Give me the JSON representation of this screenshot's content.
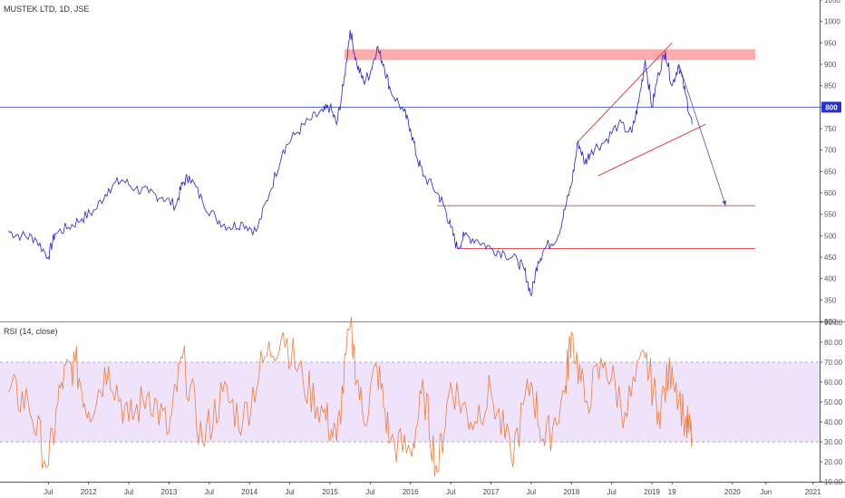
{
  "title": "MUSTEK LTD, 1D, JSE",
  "rsi_title": "RSI (14, close)",
  "colors": {
    "price_line": "#2323d6",
    "rsi_line": "#f07d3c",
    "rsi_band": "#eee3fb",
    "trend_lines": "#e23b3b",
    "resistance_zone": "#ffaaaa",
    "horizontal_line": "#3b4fd6",
    "price_badge": "#2a2fd6"
  },
  "chart_data": [
    {
      "type": "line",
      "title": "MUSTEK LTD, 1D, JSE",
      "ylim": [
        300,
        1050
      ],
      "y_ticks": [
        "300",
        "350",
        "400",
        "450",
        "500",
        "550",
        "600",
        "650",
        "700",
        "750",
        "800",
        "850",
        "900",
        "950",
        "1000",
        "1050"
      ],
      "x_ticks": [
        "Jul",
        "2012",
        "Jul",
        "2013",
        "Jul",
        "2014",
        "Jul",
        "2015",
        "Jul",
        "2016",
        "Jul",
        "2017",
        "Jul",
        "2018",
        "Jul",
        "2019",
        "19",
        "2020",
        "Jun",
        "2021"
      ],
      "x_tick_dates": [
        "2011-07",
        "2012-01",
        "2012-07",
        "2013-01",
        "2013-07",
        "2014-01",
        "2014-07",
        "2015-01",
        "2015-07",
        "2016-01",
        "2016-07",
        "2017-01",
        "2017-07",
        "2018-01",
        "2018-07",
        "2019-01",
        "2019-04",
        "2020-01",
        "2020-06",
        "2021-01"
      ],
      "series": [
        {
          "values": [
            {
              "x": "2011-01",
              "y": 510
            },
            {
              "x": "2011-03",
              "y": 500
            },
            {
              "x": "2011-05",
              "y": 495
            },
            {
              "x": "2011-07",
              "y": 450
            },
            {
              "x": "2011-08",
              "y": 505
            },
            {
              "x": "2011-10",
              "y": 520
            },
            {
              "x": "2011-12",
              "y": 540
            },
            {
              "x": "2012-02",
              "y": 560
            },
            {
              "x": "2012-04",
              "y": 610
            },
            {
              "x": "2012-06",
              "y": 630
            },
            {
              "x": "2012-08",
              "y": 610
            },
            {
              "x": "2012-10",
              "y": 600
            },
            {
              "x": "2012-12",
              "y": 590
            },
            {
              "x": "2013-02",
              "y": 570
            },
            {
              "x": "2013-03",
              "y": 620
            },
            {
              "x": "2013-04",
              "y": 640
            },
            {
              "x": "2013-06",
              "y": 580
            },
            {
              "x": "2013-08",
              "y": 540
            },
            {
              "x": "2013-10",
              "y": 520
            },
            {
              "x": "2013-12",
              "y": 530
            },
            {
              "x": "2014-02",
              "y": 510
            },
            {
              "x": "2014-04",
              "y": 600
            },
            {
              "x": "2014-06",
              "y": 700
            },
            {
              "x": "2014-08",
              "y": 740
            },
            {
              "x": "2014-10",
              "y": 770
            },
            {
              "x": "2014-12",
              "y": 790
            },
            {
              "x": "2015-01",
              "y": 800
            },
            {
              "x": "2015-02",
              "y": 760
            },
            {
              "x": "2015-03",
              "y": 850
            },
            {
              "x": "2015-04",
              "y": 980
            },
            {
              "x": "2015-05",
              "y": 900
            },
            {
              "x": "2015-06",
              "y": 860
            },
            {
              "x": "2015-07",
              "y": 880
            },
            {
              "x": "2015-08",
              "y": 940
            },
            {
              "x": "2015-09",
              "y": 900
            },
            {
              "x": "2015-10",
              "y": 840
            },
            {
              "x": "2015-12",
              "y": 790
            },
            {
              "x": "2016-01",
              "y": 750
            },
            {
              "x": "2016-02",
              "y": 680
            },
            {
              "x": "2016-03",
              "y": 640
            },
            {
              "x": "2016-05",
              "y": 600
            },
            {
              "x": "2016-06",
              "y": 570
            },
            {
              "x": "2016-07",
              "y": 520
            },
            {
              "x": "2016-08",
              "y": 470
            },
            {
              "x": "2016-09",
              "y": 500
            },
            {
              "x": "2016-11",
              "y": 490
            },
            {
              "x": "2017-01",
              "y": 470
            },
            {
              "x": "2017-03",
              "y": 460
            },
            {
              "x": "2017-05",
              "y": 440
            },
            {
              "x": "2017-06",
              "y": 420
            },
            {
              "x": "2017-07",
              "y": 360
            },
            {
              "x": "2017-08",
              "y": 440
            },
            {
              "x": "2017-09",
              "y": 470
            },
            {
              "x": "2017-11",
              "y": 500
            },
            {
              "x": "2017-12",
              "y": 560
            },
            {
              "x": "2018-01",
              "y": 620
            },
            {
              "x": "2018-02",
              "y": 720
            },
            {
              "x": "2018-03",
              "y": 670
            },
            {
              "x": "2018-04",
              "y": 700
            },
            {
              "x": "2018-06",
              "y": 720
            },
            {
              "x": "2018-08",
              "y": 760
            },
            {
              "x": "2018-10",
              "y": 740
            },
            {
              "x": "2018-11",
              "y": 810
            },
            {
              "x": "2018-12",
              "y": 910
            },
            {
              "x": "2019-01",
              "y": 800
            },
            {
              "x": "2019-02",
              "y": 880
            },
            {
              "x": "2019-03",
              "y": 930
            },
            {
              "x": "2019-04",
              "y": 850
            },
            {
              "x": "2019-05",
              "y": 900
            },
            {
              "x": "2019-06",
              "y": 830
            },
            {
              "x": "2019-07",
              "y": 760
            }
          ]
        }
      ],
      "horizontal_lines": [
        800,
        570,
        470
      ],
      "resistance_zone": [
        910,
        935
      ],
      "trend_lines": [
        {
          "from": {
            "x": "2018-02",
            "y": 720
          },
          "to": {
            "x": "2019-04",
            "y": 950
          }
        },
        {
          "from": {
            "x": "2018-05",
            "y": 640
          },
          "to": {
            "x": "2019-09",
            "y": 760
          }
        }
      ],
      "projection": {
        "from": {
          "x": "2019-05",
          "y": 900
        },
        "to": {
          "x": "2019-12",
          "y": 570
        }
      },
      "last_price_badge": "800"
    },
    {
      "type": "line",
      "title": "RSI (14, close)",
      "ylim": [
        10,
        90
      ],
      "y_ticks": [
        "10.00",
        "20.00",
        "30.00",
        "40.00",
        "50.00",
        "60.00",
        "70.00",
        "80.00",
        "90.00"
      ],
      "band": [
        30,
        70
      ],
      "series": [
        {
          "values": [
            {
              "x": "2011-01",
              "y": 55
            },
            {
              "x": "2011-04",
              "y": 50
            },
            {
              "x": "2011-07",
              "y": 18
            },
            {
              "x": "2011-09",
              "y": 60
            },
            {
              "x": "2011-11",
              "y": 70
            },
            {
              "x": "2012-01",
              "y": 45
            },
            {
              "x": "2012-04",
              "y": 68
            },
            {
              "x": "2012-07",
              "y": 40
            },
            {
              "x": "2012-10",
              "y": 55
            },
            {
              "x": "2013-01",
              "y": 35
            },
            {
              "x": "2013-03",
              "y": 72
            },
            {
              "x": "2013-06",
              "y": 30
            },
            {
              "x": "2013-09",
              "y": 55
            },
            {
              "x": "2013-12",
              "y": 40
            },
            {
              "x": "2014-03",
              "y": 70
            },
            {
              "x": "2014-06",
              "y": 85
            },
            {
              "x": "2014-09",
              "y": 60
            },
            {
              "x": "2014-12",
              "y": 45
            },
            {
              "x": "2015-02",
              "y": 30
            },
            {
              "x": "2015-04",
              "y": 88
            },
            {
              "x": "2015-06",
              "y": 40
            },
            {
              "x": "2015-08",
              "y": 68
            },
            {
              "x": "2015-10",
              "y": 30
            },
            {
              "x": "2016-01",
              "y": 25
            },
            {
              "x": "2016-03",
              "y": 55
            },
            {
              "x": "2016-05",
              "y": 15
            },
            {
              "x": "2016-07",
              "y": 60
            },
            {
              "x": "2016-10",
              "y": 40
            },
            {
              "x": "2017-01",
              "y": 55
            },
            {
              "x": "2017-04",
              "y": 22
            },
            {
              "x": "2017-07",
              "y": 60
            },
            {
              "x": "2017-09",
              "y": 28
            },
            {
              "x": "2017-12",
              "y": 55
            },
            {
              "x": "2018-01",
              "y": 85
            },
            {
              "x": "2018-03",
              "y": 50
            },
            {
              "x": "2018-06",
              "y": 70
            },
            {
              "x": "2018-09",
              "y": 45
            },
            {
              "x": "2018-12",
              "y": 72
            },
            {
              "x": "2019-02",
              "y": 45
            },
            {
              "x": "2019-04",
              "y": 68
            },
            {
              "x": "2019-06",
              "y": 40
            },
            {
              "x": "2019-07",
              "y": 32
            }
          ]
        }
      ]
    }
  ]
}
